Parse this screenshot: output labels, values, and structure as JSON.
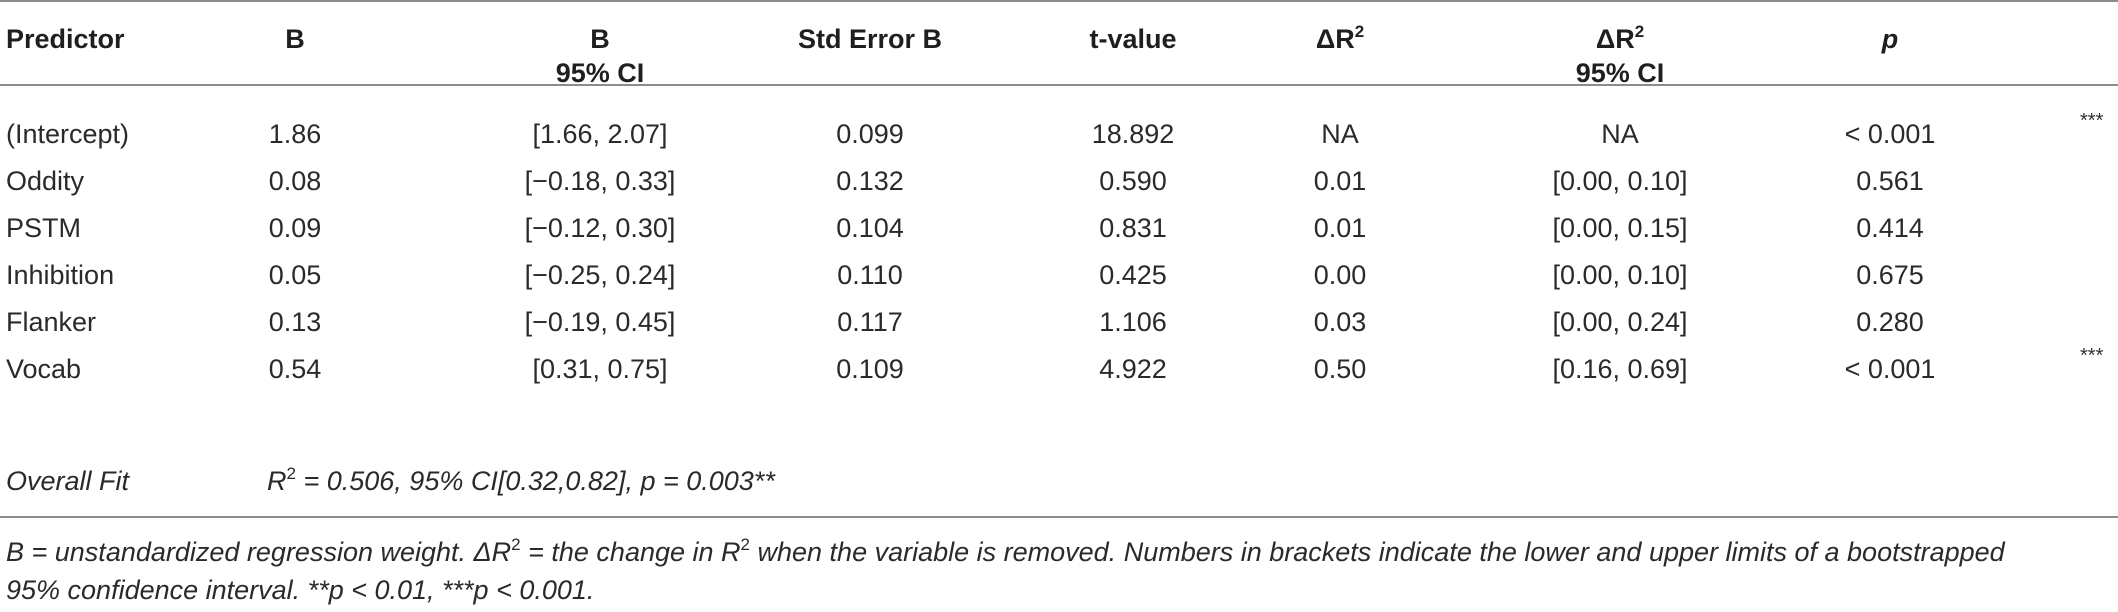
{
  "headers": [
    {
      "line1": "Predictor",
      "line2": ""
    },
    {
      "line1": "B",
      "line2": ""
    },
    {
      "line1": "B",
      "line2": "95% CI"
    },
    {
      "line1": "Std Error B",
      "line2": ""
    },
    {
      "line1": "t-value",
      "line2": ""
    },
    {
      "line1": "ΔR",
      "sup": "2",
      "line2": ""
    },
    {
      "line1": "ΔR",
      "sup": "2",
      "line2": "95% CI"
    },
    {
      "line1": "p",
      "line2": ""
    }
  ],
  "rows": [
    {
      "predictor": "(Intercept)",
      "b": "1.86",
      "b_ci": "[1.66, 2.07]",
      "se": "0.099",
      "t": "18.892",
      "dr2": "NA",
      "dr2_ci": "NA",
      "p": "< 0.001",
      "sig": "***"
    },
    {
      "predictor": "Oddity",
      "b": "0.08",
      "b_ci": "[−0.18, 0.33]",
      "se": "0.132",
      "t": "0.590",
      "dr2": "0.01",
      "dr2_ci": "[0.00, 0.10]",
      "p": "0.561",
      "sig": ""
    },
    {
      "predictor": "PSTM",
      "b": "0.09",
      "b_ci": "[−0.12, 0.30]",
      "se": "0.104",
      "t": "0.831",
      "dr2": "0.01",
      "dr2_ci": "[0.00, 0.15]",
      "p": "0.414",
      "sig": ""
    },
    {
      "predictor": "Inhibition",
      "b": "0.05",
      "b_ci": "[−0.25, 0.24]",
      "se": "0.110",
      "t": "0.425",
      "dr2": "0.00",
      "dr2_ci": "[0.00, 0.10]",
      "p": "0.675",
      "sig": ""
    },
    {
      "predictor": "Flanker",
      "b": "0.13",
      "b_ci": "[−0.19, 0.45]",
      "se": "0.117",
      "t": "1.106",
      "dr2": "0.03",
      "dr2_ci": "[0.00, 0.24]",
      "p": "0.280",
      "sig": ""
    },
    {
      "predictor": "Vocab",
      "b": "0.54",
      "b_ci": "[0.31, 0.75]",
      "se": "0.109",
      "t": "4.922",
      "dr2": "0.50",
      "dr2_ci": "[0.16, 0.69]",
      "p": "< 0.001",
      "sig": "***"
    }
  ],
  "overall_fit": {
    "label": "Overall Fit",
    "r": "R",
    "sup": "2",
    "value": " = 0.506, 95% CI[0.32,0.82], p = 0.003**"
  },
  "note": {
    "line1_a": "B = unstandardized regression weight. ΔR",
    "line1_sup": "2",
    "line1_b": " = the change in R",
    "line1_sup2": "2",
    "line1_c": " when the variable is removed. Numbers in brackets indicate the lower and upper limits of a bootstrapped",
    "line2": "95% confidence interval. **p < 0.01, ***p < 0.001."
  }
}
